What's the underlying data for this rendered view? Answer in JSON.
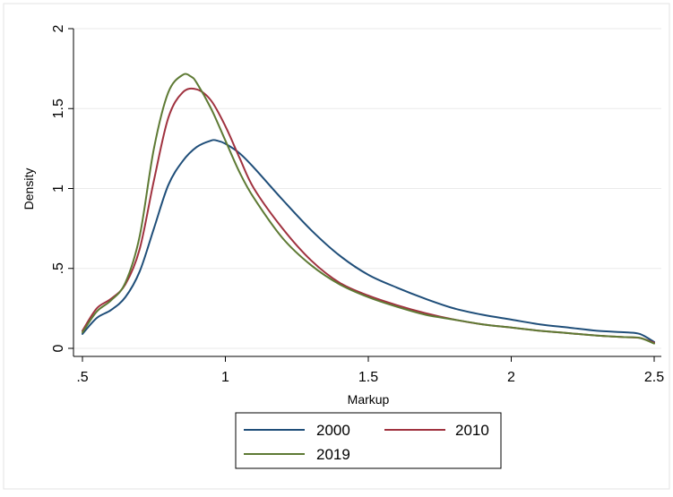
{
  "chart_data": {
    "type": "line",
    "xlabel": "Markup",
    "ylabel": "Density",
    "xlim": [
      0.5,
      2.5
    ],
    "ylim": [
      0,
      2
    ],
    "x_ticks": [
      0.5,
      1,
      1.5,
      2,
      2.5
    ],
    "x_tick_labels": [
      ".5",
      "1",
      "1.5",
      "2",
      "2.5"
    ],
    "y_ticks": [
      0,
      0.5,
      1,
      1.5,
      2
    ],
    "y_tick_labels": [
      "0",
      ".5",
      "1",
      "1.5",
      "2"
    ],
    "grid": "horizontal",
    "legend_position": "bottom",
    "series": [
      {
        "name": "2000",
        "color": "#1f4e79",
        "x": [
          0.5,
          0.55,
          0.6,
          0.65,
          0.7,
          0.75,
          0.8,
          0.85,
          0.9,
          0.95,
          0.97,
          1.0,
          1.05,
          1.1,
          1.2,
          1.3,
          1.4,
          1.5,
          1.6,
          1.7,
          1.8,
          1.9,
          2.0,
          2.1,
          2.2,
          2.3,
          2.4,
          2.45,
          2.5
        ],
        "y": [
          0.09,
          0.19,
          0.24,
          0.32,
          0.48,
          0.75,
          1.02,
          1.17,
          1.26,
          1.3,
          1.3,
          1.28,
          1.22,
          1.13,
          0.93,
          0.74,
          0.58,
          0.46,
          0.38,
          0.31,
          0.25,
          0.21,
          0.18,
          0.15,
          0.13,
          0.11,
          0.1,
          0.09,
          0.04
        ]
      },
      {
        "name": "2010",
        "color": "#a0323f",
        "x": [
          0.5,
          0.55,
          0.6,
          0.65,
          0.7,
          0.75,
          0.8,
          0.85,
          0.9,
          0.95,
          1.0,
          1.05,
          1.1,
          1.2,
          1.3,
          1.4,
          1.5,
          1.6,
          1.7,
          1.8,
          1.9,
          2.0,
          2.1,
          2.2,
          2.3,
          2.4,
          2.45,
          2.5
        ],
        "y": [
          0.11,
          0.25,
          0.31,
          0.4,
          0.62,
          1.05,
          1.44,
          1.6,
          1.62,
          1.55,
          1.39,
          1.19,
          1.0,
          0.75,
          0.55,
          0.41,
          0.33,
          0.27,
          0.22,
          0.18,
          0.15,
          0.13,
          0.11,
          0.095,
          0.08,
          0.07,
          0.065,
          0.035
        ]
      },
      {
        "name": "2019",
        "color": "#5e7a34",
        "x": [
          0.5,
          0.55,
          0.6,
          0.65,
          0.7,
          0.75,
          0.8,
          0.85,
          0.88,
          0.9,
          0.95,
          1.0,
          1.05,
          1.1,
          1.2,
          1.3,
          1.4,
          1.5,
          1.6,
          1.7,
          1.8,
          1.9,
          2.0,
          2.1,
          2.2,
          2.3,
          2.4,
          2.45,
          2.5
        ],
        "y": [
          0.1,
          0.23,
          0.3,
          0.41,
          0.7,
          1.25,
          1.6,
          1.71,
          1.7,
          1.66,
          1.5,
          1.3,
          1.1,
          0.94,
          0.69,
          0.52,
          0.4,
          0.32,
          0.26,
          0.21,
          0.18,
          0.15,
          0.13,
          0.11,
          0.095,
          0.08,
          0.07,
          0.065,
          0.03
        ]
      }
    ]
  }
}
